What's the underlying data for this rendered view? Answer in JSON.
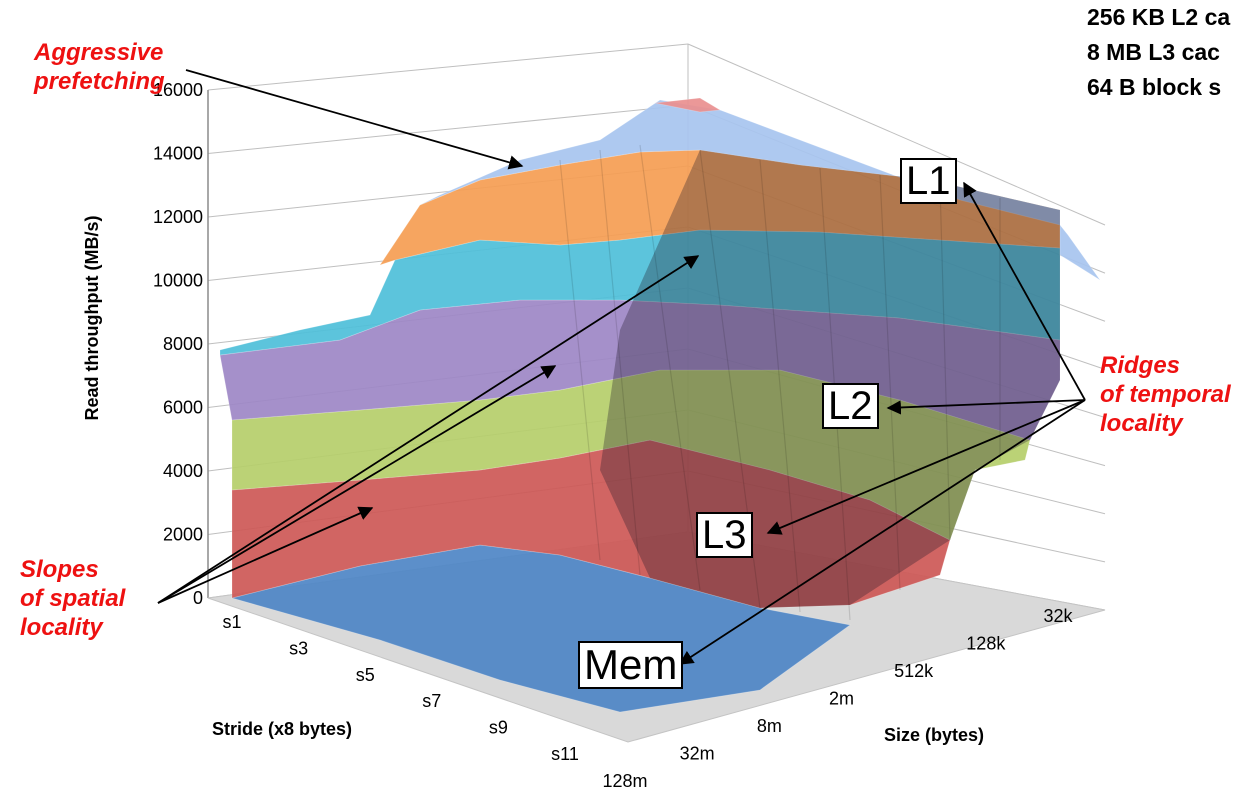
{
  "chart_data": {
    "type": "surface",
    "z_label": "Read throughput (MB/s)",
    "x_label": "Stride (x8 bytes)",
    "y_label": "Size (bytes)",
    "z_ticks": [
      0,
      2000,
      4000,
      6000,
      8000,
      10000,
      12000,
      14000,
      16000
    ],
    "zlim": [
      0,
      16000
    ],
    "x_tick_labels": [
      "s1",
      "s3",
      "s5",
      "s7",
      "s9",
      "s11"
    ],
    "y_tick_labels": [
      "32k",
      "128k",
      "512k",
      "2m",
      "8m",
      "32m",
      "128m"
    ],
    "color_bands": [
      {
        "range": [
          0,
          2000
        ],
        "color": "#4e86c6"
      },
      {
        "range": [
          2000,
          4000
        ],
        "color": "#cd5856"
      },
      {
        "range": [
          4000,
          6000
        ],
        "color": "#b5ce6a"
      },
      {
        "range": [
          6000,
          8000
        ],
        "color": "#9d87c6"
      },
      {
        "range": [
          8000,
          10000
        ],
        "color": "#4ebfd9"
      },
      {
        "range": [
          10000,
          12000
        ],
        "color": "#f59d52"
      },
      {
        "range": [
          12000,
          14000
        ],
        "color": "#a7c4ef"
      },
      {
        "range": [
          14000,
          16000
        ],
        "color": "#e98f8f"
      }
    ]
  },
  "annotations": {
    "prefetch": "Aggressive prefetching",
    "spatial_line1": "Slopes",
    "spatial_line2": "of spatial",
    "spatial_line3": "locality",
    "temporal_line1": "Ridges",
    "temporal_line2": "of temporal",
    "temporal_line3": "locality"
  },
  "cache_info": [
    "256 KB L2 ca",
    "8 MB L3 cac",
    "64 B block s"
  ],
  "labels": {
    "l1": "L1",
    "l2": "L2",
    "l3": "L3",
    "mem": "Mem"
  },
  "colors": {
    "annotation": "#ee1111",
    "floor": "#d9d9d9",
    "grid": "#bfbfbf"
  }
}
